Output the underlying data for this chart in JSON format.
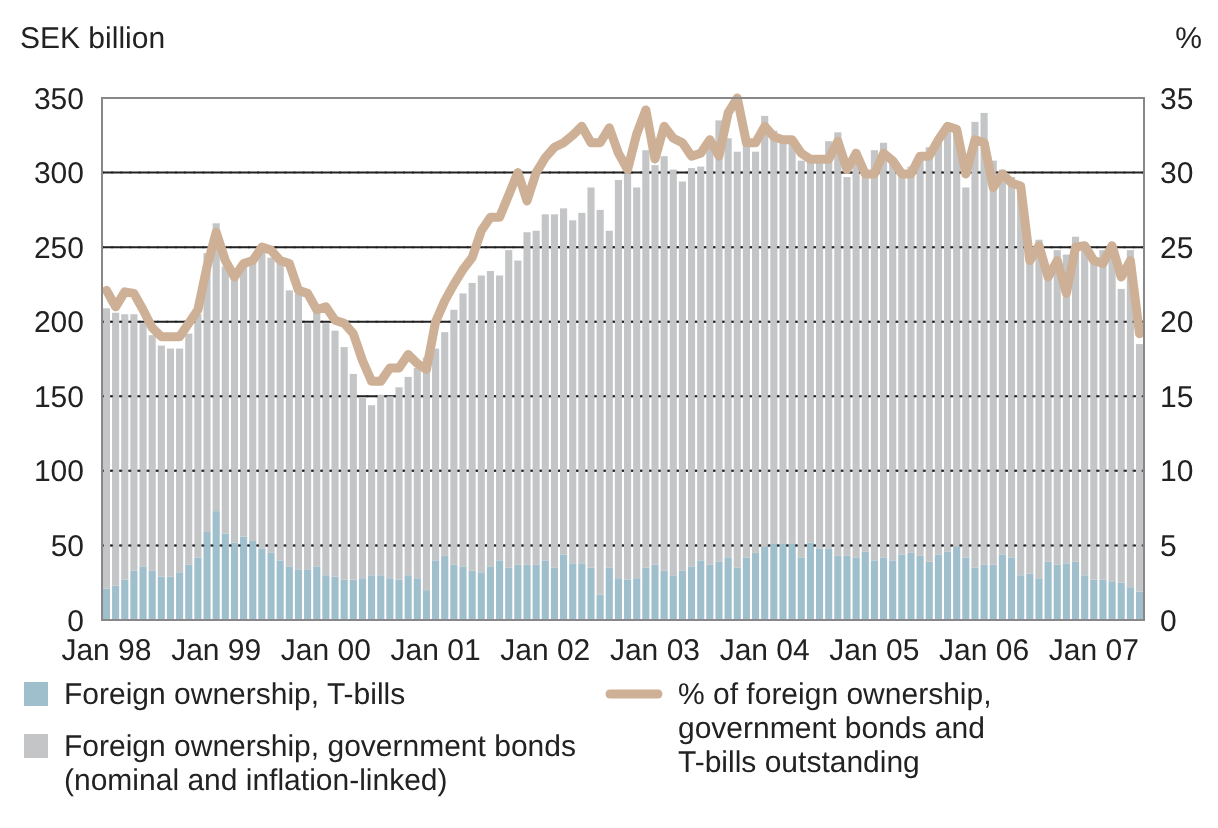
{
  "chart_data": {
    "type": "bar",
    "stacked": true,
    "ylabel": "SEK billion",
    "y2label": "%",
    "categories": [
      "Jan 98",
      null,
      null,
      null,
      null,
      null,
      null,
      null,
      null,
      null,
      null,
      null,
      "Jan 99",
      null,
      null,
      null,
      null,
      null,
      null,
      null,
      null,
      null,
      null,
      null,
      "Jan 00",
      null,
      null,
      null,
      null,
      null,
      null,
      null,
      null,
      null,
      null,
      null,
      "Jan 01",
      null,
      null,
      null,
      null,
      null,
      null,
      null,
      null,
      null,
      null,
      null,
      "Jan 02",
      null,
      null,
      null,
      null,
      null,
      null,
      null,
      null,
      null,
      null,
      null,
      "Jan 03",
      null,
      null,
      null,
      null,
      null,
      null,
      null,
      null,
      null,
      null,
      null,
      "Jan 04",
      null,
      null,
      null,
      null,
      null,
      null,
      null,
      null,
      null,
      null,
      null,
      "Jan 05",
      null,
      null,
      null,
      null,
      null,
      null,
      null,
      null,
      null,
      null,
      null,
      "Jan 06",
      null,
      null,
      null,
      null,
      null,
      null,
      null,
      null,
      null,
      null,
      null,
      "Jan 07",
      null,
      null,
      null,
      null,
      null
    ],
    "series": [
      {
        "name": "Foreign ownership, T-bills",
        "color": "#9fbfcc",
        "values": [
          21,
          23,
          27,
          33,
          36,
          33,
          29,
          29,
          32,
          37,
          42,
          59,
          73,
          58,
          52,
          56,
          53,
          48,
          45,
          40,
          36,
          34,
          34,
          36,
          30,
          29,
          27,
          27,
          28,
          30,
          30,
          28,
          27,
          30,
          28,
          20,
          40,
          43,
          37,
          36,
          33,
          32,
          36,
          40,
          35,
          37,
          37,
          37,
          40,
          35,
          44,
          38,
          38,
          35,
          17,
          35,
          28,
          27,
          28,
          35,
          37,
          33,
          30,
          33,
          36,
          40,
          37,
          39,
          42,
          35,
          42,
          45,
          49,
          51,
          51,
          51,
          42,
          52,
          48,
          48,
          43,
          43,
          42,
          46,
          40,
          42,
          40,
          44,
          45,
          43,
          39,
          44,
          46,
          49,
          42,
          35,
          37,
          37,
          44,
          42,
          30,
          31,
          28,
          39,
          37,
          38,
          39,
          30,
          27,
          27,
          26,
          25,
          22,
          19
        ]
      },
      {
        "name": "Foreign ownership, government bonds (nominal and inflation-linked)",
        "color": "#c4c5c7",
        "values": [
          188,
          183,
          178,
          172,
          163,
          158,
          155,
          153,
          150,
          155,
          163,
          187,
          193,
          179,
          178,
          181,
          190,
          200,
          198,
          199,
          185,
          185,
          165,
          174,
          169,
          165,
          156,
          138,
          121,
          114,
          121,
          122,
          129,
          133,
          141,
          156,
          142,
          150,
          171,
          183,
          193,
          199,
          198,
          191,
          213,
          204,
          223,
          224,
          232,
          237,
          232,
          230,
          235,
          255,
          258,
          226,
          267,
          272,
          262,
          280,
          268,
          278,
          272,
          261,
          267,
          264,
          283,
          296,
          281,
          279,
          278,
          269,
          289,
          277,
          273,
          271,
          266,
          256,
          260,
          273,
          284,
          254,
          273,
          251,
          275,
          278,
          266,
          255,
          259,
          268,
          278,
          276,
          285,
          280,
          248,
          299,
          303,
          271,
          258,
          255,
          263,
          210,
          227,
          193,
          211,
          207,
          218,
          222,
          214,
          221,
          219,
          197,
          226,
          166
        ]
      },
      {
        "name": "% of foreign ownership, government bonds and T-bills outstanding",
        "type": "line",
        "axis": "y2",
        "color": "#cdb095",
        "values": [
          22.1,
          21.0,
          22.0,
          21.9,
          20.8,
          19.6,
          19.0,
          19.0,
          19.0,
          19.9,
          20.8,
          23.7,
          26.0,
          24.1,
          23.0,
          23.9,
          24.1,
          25.0,
          24.8,
          24.1,
          23.9,
          22.1,
          21.9,
          20.8,
          21.0,
          20.1,
          19.9,
          19.2,
          17.4,
          16.0,
          16.0,
          16.9,
          16.9,
          17.8,
          17.2,
          16.8,
          20.0,
          21.4,
          22.5,
          23.5,
          24.3,
          26.1,
          27.0,
          27.0,
          28.5,
          30.0,
          28.1,
          30.0,
          31.0,
          31.7,
          32.0,
          32.5,
          33.1,
          32.0,
          32.0,
          33.0,
          31.3,
          30.2,
          32.6,
          34.2,
          30.9,
          33.1,
          32.3,
          32.0,
          31.1,
          31.3,
          32.2,
          31.1,
          34.0,
          35.0,
          32.0,
          32.0,
          33.1,
          32.4,
          32.2,
          32.2,
          31.3,
          30.9,
          30.9,
          30.9,
          32.1,
          30.2,
          31.3,
          29.9,
          29.9,
          31.3,
          30.8,
          29.9,
          29.9,
          31.1,
          31.1,
          32.2,
          33.1,
          32.9,
          29.9,
          32.2,
          32.0,
          29.0,
          29.9,
          29.3,
          29.1,
          24.1,
          25.1,
          23.0,
          24.1,
          21.9,
          25.0,
          25.1,
          24.1,
          23.9,
          25.1,
          23.0,
          24.1,
          19.2
        ]
      }
    ],
    "ylim": [
      0,
      350
    ],
    "yticks": [
      0,
      50,
      100,
      150,
      200,
      250,
      300,
      350
    ],
    "y2lim": [
      0,
      35
    ],
    "y2ticks": [
      0,
      5,
      10,
      15,
      20,
      25,
      30,
      35
    ],
    "grid": "y",
    "legend": "bottom"
  }
}
